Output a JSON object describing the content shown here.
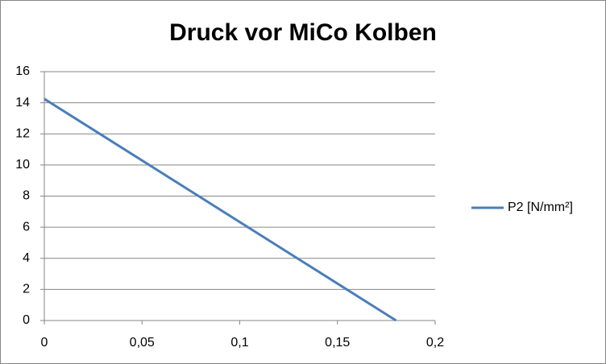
{
  "chart_data": {
    "type": "line",
    "title": "Druck vor MiCo Kolben",
    "x": [
      0,
      0.18
    ],
    "series": [
      {
        "name": "P2 [N/mm²]",
        "color": "#4a7ebb",
        "values": [
          14.25,
          0
        ]
      }
    ],
    "xlim": [
      0,
      0.2
    ],
    "xticks": [
      0,
      {
        "value": 0.05,
        "label": "0,05"
      },
      {
        "value": 0.1,
        "label": "0,1"
      },
      {
        "value": 0.15,
        "label": "0,15"
      },
      {
        "value": 0.2,
        "label": "0,2"
      }
    ],
    "ylim": [
      0,
      16
    ],
    "yticks": [
      0,
      2,
      4,
      6,
      8,
      10,
      12,
      14,
      16
    ],
    "grid": true,
    "legend": "right"
  }
}
